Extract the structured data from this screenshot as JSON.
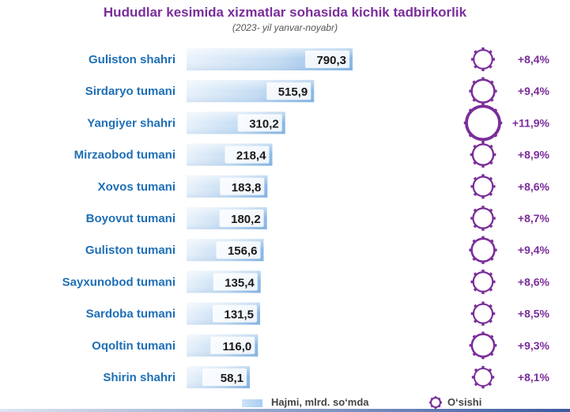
{
  "title": "Hududlar kesimida xizmatlar sohasida kichik tadbirkorlik",
  "subtitle": "(2023- yil yanvar-noyabr)",
  "legend": {
    "bar_label": "Hajmi, mlrd. so‘mda",
    "growth_label": "O‘sishi"
  },
  "colors": {
    "label": "#1f6fb5",
    "bar_light": "#e8f1fb",
    "bar_dark": "#7fb3e3",
    "gear": "#7a2e9a",
    "growth_text": "#7a2e9a"
  },
  "chart_data": {
    "type": "bar",
    "orientation": "horizontal",
    "categories": [
      "Guliston shahri",
      "Sirdaryo tumani",
      "Yangiyer shahri",
      "Mirzaobod tumani",
      "Xovos tumani",
      "Boyovut tumani",
      "Guliston tumani",
      "Sayxunobod tumani",
      "Sardoba tumani",
      "Oqoltin tumani",
      "Shirin shahri"
    ],
    "series": [
      {
        "name": "Hajmi, mlrd. so‘mda",
        "values": [
          790.3,
          515.9,
          310.2,
          218.4,
          183.8,
          180.2,
          156.6,
          135.4,
          131.5,
          116.0,
          58.1
        ],
        "value_labels": [
          "790,3",
          "515,9",
          "310,2",
          "218,4",
          "183,8",
          "180,2",
          "156,6",
          "135,4",
          "131,5",
          "116,0",
          "58,1"
        ]
      },
      {
        "name": "O‘sishi",
        "values": [
          8.4,
          9.4,
          11.9,
          8.9,
          8.6,
          8.7,
          9.4,
          8.6,
          8.5,
          9.3,
          8.1
        ],
        "value_labels": [
          "+8,4%",
          "+9,4%",
          "+11,9%",
          "+8,9%",
          "+8,6%",
          "+8,7%",
          "+9,4%",
          "+8,6%",
          "+8,5%",
          "+9,3%",
          "+8,1%"
        ]
      }
    ],
    "legend_position": "bottom",
    "grid": false
  }
}
